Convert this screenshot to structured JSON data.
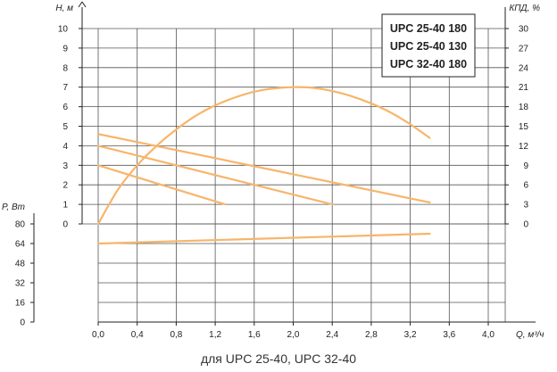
{
  "caption": "для UPC 25-40, UPC 32-40",
  "chart_data": {
    "type": "line",
    "axes": {
      "x": {
        "label": "Q, м³/ч",
        "min": 0,
        "max": 4.0,
        "ticks": [
          "0,0",
          "0,4",
          "0,8",
          "1,2",
          "1,6",
          "2,0",
          "2,4",
          "2,8",
          "3,2",
          "3,6",
          "4,0"
        ]
      },
      "y_head": {
        "label": "H, м",
        "min": 0,
        "max": 10,
        "ticks": [
          "0",
          "1",
          "2",
          "3",
          "4",
          "5",
          "6",
          "7",
          "8",
          "9",
          "10"
        ]
      },
      "y_efficiency": {
        "label": "КПД, %",
        "min": 0,
        "max": 30,
        "ticks": [
          "0",
          "3",
          "6",
          "9",
          "12",
          "15",
          "18",
          "21",
          "24",
          "27",
          "30"
        ]
      },
      "y_power": {
        "label": "P, Вт",
        "min": 0,
        "max": 80,
        "ticks": [
          "0",
          "16",
          "32",
          "48",
          "64",
          "80"
        ]
      }
    },
    "grid": true,
    "legend": {
      "placement": "top-right",
      "entries": [
        "UPC 25-40 180",
        "UPC 25-40 130",
        "UPC 32-40 180"
      ]
    },
    "line_color": "#f7b56a",
    "series": [
      {
        "axis": "y_head",
        "x": [
          0.0,
          3.4
        ],
        "y": [
          4.6,
          1.1
        ]
      },
      {
        "axis": "y_head",
        "x": [
          0.0,
          2.4
        ],
        "y": [
          4.0,
          1.0
        ]
      },
      {
        "axis": "y_head",
        "x": [
          0.0,
          1.3
        ],
        "y": [
          3.0,
          1.0
        ]
      },
      {
        "axis": "y_efficiency",
        "x": [
          0.0,
          0.2,
          0.4,
          0.6,
          0.8,
          1.0,
          1.2,
          1.4,
          1.6,
          1.8,
          2.0,
          2.2,
          2.4,
          2.6,
          2.8,
          3.0,
          3.2,
          3.4
        ],
        "y": [
          0.0,
          5.2,
          9.0,
          12.0,
          14.5,
          16.6,
          18.2,
          19.4,
          20.3,
          20.8,
          21.0,
          20.9,
          20.4,
          19.6,
          18.5,
          17.1,
          15.3,
          13.2
        ]
      },
      {
        "axis": "y_power",
        "x": [
          0.0,
          3.4
        ],
        "y": [
          64,
          72
        ]
      }
    ]
  }
}
